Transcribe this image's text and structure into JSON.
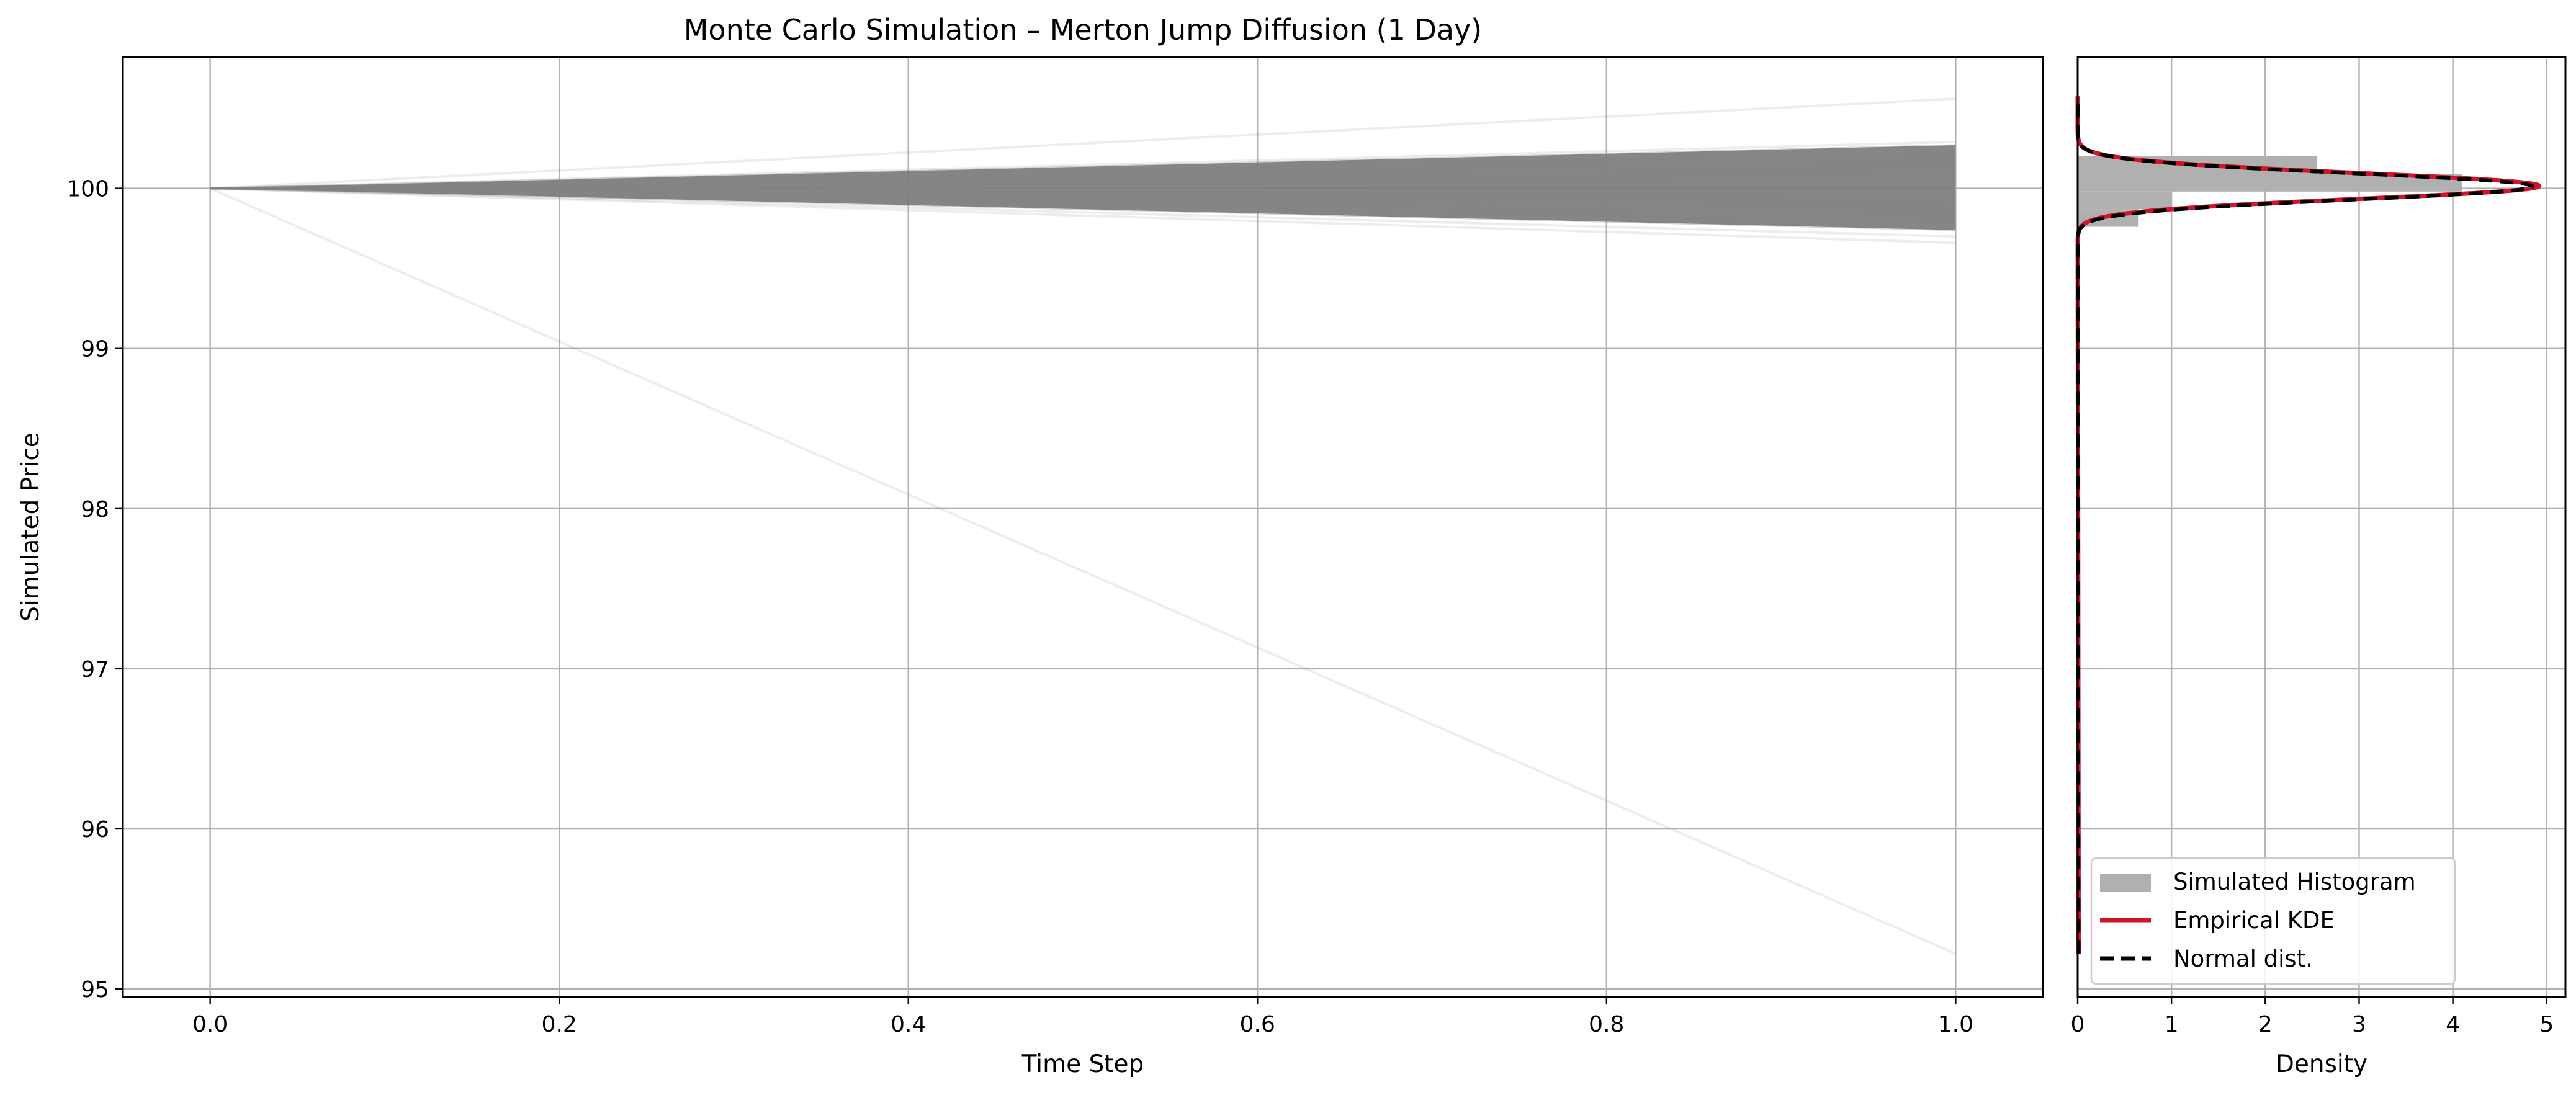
{
  "chart_data": [
    {
      "type": "line",
      "title": "Monte Carlo Simulation – Merton Jump Diffusion (1 Day)",
      "xlabel": "Time Step",
      "ylabel": "Simulated Price",
      "xlim": [
        -0.05,
        1.05
      ],
      "ylim": [
        94.95,
        100.82
      ],
      "x_ticks": [
        0.0,
        0.2,
        0.4,
        0.6,
        0.8,
        1.0
      ],
      "x_tick_labels": [
        "0.0",
        "0.2",
        "0.4",
        "0.6",
        "0.8",
        "1.0"
      ],
      "y_ticks": [
        95,
        96,
        97,
        98,
        99,
        100
      ],
      "y_tick_labels": [
        "95",
        "96",
        "97",
        "98",
        "99",
        "100"
      ],
      "grid": true,
      "path_color": "#808080",
      "start": {
        "x": 0.0,
        "y": 100.0
      },
      "band_end": {
        "x": 1.0,
        "y_upper": 100.27,
        "y_lower": 99.74
      },
      "outlier_paths": [
        {
          "x": [
            0.0,
            1.0
          ],
          "y": [
            100.0,
            100.56
          ]
        },
        {
          "x": [
            0.0,
            1.0
          ],
          "y": [
            100.0,
            95.22
          ]
        },
        {
          "x": [
            0.0,
            1.0
          ],
          "y": [
            100.0,
            99.66
          ]
        },
        {
          "x": [
            0.0,
            1.0
          ],
          "y": [
            100.0,
            99.7
          ]
        },
        {
          "x": [
            0.0,
            1.0
          ],
          "y": [
            100.0,
            100.29
          ]
        }
      ]
    },
    {
      "type": "area",
      "xlabel": "Density",
      "xlim": [
        0,
        5.2
      ],
      "x_ticks": [
        0,
        1,
        2,
        3,
        4,
        5
      ],
      "x_tick_labels": [
        "0",
        "1",
        "2",
        "3",
        "4",
        "5"
      ],
      "ylim": [
        94.95,
        100.82
      ],
      "grid": true,
      "histogram": {
        "name": "Simulated Histogram",
        "color": "#b0b0b0",
        "bins": [
          {
            "y0": 99.76,
            "y1": 99.87,
            "density": 0.65
          },
          {
            "y0": 99.87,
            "y1": 99.98,
            "density": 1.0
          },
          {
            "y0": 99.98,
            "y1": 100.09,
            "density": 4.1
          },
          {
            "y0": 100.09,
            "y1": 100.2,
            "density": 2.55
          },
          {
            "y0": 100.2,
            "y1": 100.31,
            "density": 0.0
          }
        ]
      },
      "series": [
        {
          "name": "Empirical KDE",
          "color": "#d0142c",
          "style": "solid",
          "mean": 100.015,
          "sd": 0.081,
          "peak": 4.92
        },
        {
          "name": "Normal dist.",
          "color": "#000000",
          "style": "dashed",
          "mean": 100.012,
          "sd": 0.082,
          "peak": 4.85
        }
      ],
      "legend": {
        "position": "lower-right",
        "entries": [
          "Simulated Histogram",
          "Empirical KDE",
          "Normal dist."
        ]
      }
    }
  ]
}
